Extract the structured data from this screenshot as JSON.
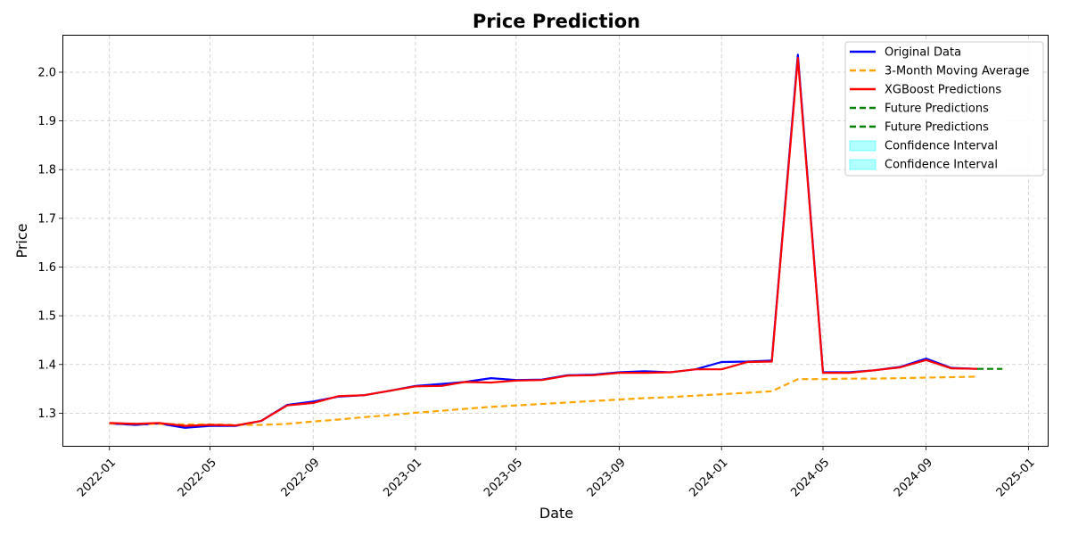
{
  "chart_data": {
    "type": "line",
    "title": "Price Prediction",
    "xlabel": "Date",
    "ylabel": "Price",
    "xlim": [
      "2021-11-07",
      "2025-01-24"
    ],
    "ylim": [
      1.233,
      2.075
    ],
    "grid": true,
    "legend_position": "top-right",
    "x_ticks": [
      "2022-01",
      "2022-05",
      "2022-09",
      "2023-01",
      "2023-05",
      "2023-09",
      "2024-01",
      "2024-05",
      "2024-09",
      "2025-01"
    ],
    "y_ticks": [
      1.3,
      1.4,
      1.5,
      1.6,
      1.7,
      1.8,
      1.9,
      2.0
    ],
    "legend": [
      {
        "label": "Original Data",
        "color": "#0000ff",
        "style": "solid"
      },
      {
        "label": "3-Month Moving Average",
        "color": "#ffa500",
        "style": "dashed"
      },
      {
        "label": "XGBoost Predictions",
        "color": "#ff0000",
        "style": "solid"
      },
      {
        "label": "Future Predictions",
        "color": "#008000",
        "style": "dashed"
      },
      {
        "label": "Future Predictions",
        "color": "#008000",
        "style": "dashed"
      },
      {
        "label": "Confidence Interval",
        "color": "#00ffff",
        "style": "patch"
      },
      {
        "label": "Confidence Interval",
        "color": "#00ffff",
        "style": "patch"
      }
    ],
    "series": [
      {
        "name": "Original Data",
        "color": "#0000ff",
        "style": "solid",
        "x": [
          "2022-01",
          "2022-02",
          "2022-03",
          "2022-04",
          "2022-05",
          "2022-06",
          "2022-07",
          "2022-08",
          "2022-09",
          "2022-10",
          "2022-11",
          "2022-12",
          "2023-01",
          "2023-02",
          "2023-03",
          "2023-04",
          "2023-05",
          "2023-06",
          "2023-07",
          "2023-08",
          "2023-09",
          "2023-10",
          "2023-11",
          "2023-12",
          "2024-01",
          "2024-02",
          "2024-03",
          "2024-04",
          "2024-05",
          "2024-06",
          "2024-07",
          "2024-08",
          "2024-09",
          "2024-10",
          "2024-11"
        ],
        "values": [
          1.279,
          1.276,
          1.279,
          1.27,
          1.274,
          1.274,
          1.284,
          1.317,
          1.324,
          1.334,
          1.337,
          1.346,
          1.356,
          1.36,
          1.364,
          1.372,
          1.368,
          1.369,
          1.378,
          1.379,
          1.384,
          1.386,
          1.384,
          1.39,
          1.405,
          1.406,
          1.408,
          2.036,
          1.384,
          1.384,
          1.388,
          1.395,
          1.412,
          1.393,
          1.391
        ]
      },
      {
        "name": "3-Month Moving Average",
        "color": "#ffa500",
        "style": "dashed",
        "x": [
          "2022-01",
          "2022-02",
          "2022-03",
          "2022-04",
          "2022-05",
          "2022-06",
          "2022-07",
          "2022-08",
          "2022-09",
          "2022-10",
          "2022-11",
          "2022-12",
          "2023-01",
          "2023-02",
          "2023-03",
          "2023-04",
          "2023-05",
          "2023-06",
          "2023-07",
          "2023-08",
          "2023-09",
          "2023-10",
          "2023-11",
          "2023-12",
          "2024-01",
          "2024-02",
          "2024-03",
          "2024-04",
          "2024-05",
          "2024-06",
          "2024-07",
          "2024-08",
          "2024-09",
          "2024-10",
          "2024-11"
        ],
        "values": [
          1.279,
          1.278,
          1.278,
          1.277,
          1.277,
          1.276,
          1.276,
          1.278,
          1.283,
          1.287,
          1.292,
          1.296,
          1.301,
          1.305,
          1.309,
          1.313,
          1.316,
          1.319,
          1.322,
          1.325,
          1.328,
          1.331,
          1.333,
          1.336,
          1.339,
          1.342,
          1.345,
          1.37,
          1.37,
          1.371,
          1.371,
          1.372,
          1.373,
          1.374,
          1.375
        ]
      },
      {
        "name": "XGBoost Predictions",
        "color": "#ff0000",
        "style": "solid",
        "x": [
          "2022-01",
          "2022-02",
          "2022-03",
          "2022-04",
          "2022-05",
          "2022-06",
          "2022-07",
          "2022-08",
          "2022-09",
          "2022-10",
          "2022-11",
          "2022-12",
          "2023-01",
          "2023-02",
          "2023-03",
          "2023-04",
          "2023-05",
          "2023-06",
          "2023-07",
          "2023-08",
          "2023-09",
          "2023-10",
          "2023-11",
          "2023-12",
          "2024-01",
          "2024-02",
          "2024-03",
          "2024-04",
          "2024-05",
          "2024-06",
          "2024-07",
          "2024-08",
          "2024-09",
          "2024-10",
          "2024-11"
        ],
        "values": [
          1.28,
          1.278,
          1.28,
          1.274,
          1.276,
          1.275,
          1.284,
          1.316,
          1.321,
          1.335,
          1.337,
          1.346,
          1.355,
          1.356,
          1.364,
          1.363,
          1.367,
          1.368,
          1.377,
          1.378,
          1.383,
          1.383,
          1.384,
          1.39,
          1.39,
          1.405,
          1.406,
          2.029,
          1.383,
          1.383,
          1.388,
          1.394,
          1.409,
          1.392,
          1.391
        ]
      },
      {
        "name": "Future Predictions",
        "color": "#008000",
        "style": "dashed",
        "x": [
          "2024-11",
          "2024-12"
        ],
        "values": [
          1.391,
          1.391
        ]
      }
    ]
  }
}
